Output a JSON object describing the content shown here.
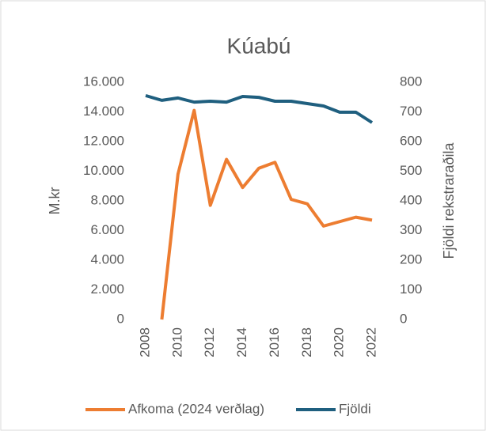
{
  "chart_data": {
    "type": "line",
    "title": "Kúabú",
    "x": [
      2008,
      2009,
      2010,
      2011,
      2012,
      2013,
      2014,
      2015,
      2016,
      2017,
      2018,
      2019,
      2020,
      2021,
      2022
    ],
    "xlim": [
      2008,
      2022
    ],
    "xticks": [
      2008,
      2010,
      2012,
      2014,
      2016,
      2018,
      2020,
      2022
    ],
    "y_label": "M.kr",
    "y2_label": "Fjöldi rekstraraðila",
    "ylim": [
      0,
      16000
    ],
    "yticks": [
      0,
      {
        "value": 2000,
        "label": "2.000"
      },
      {
        "value": 4000,
        "label": "4.000"
      },
      {
        "value": 6000,
        "label": "6.000"
      },
      {
        "value": 8000,
        "label": "8.000"
      },
      {
        "value": 10000,
        "label": "10.000"
      },
      {
        "value": 12000,
        "label": "12.000"
      },
      {
        "value": 14000,
        "label": "14.000"
      },
      {
        "value": 16000,
        "label": "16.000"
      }
    ],
    "y2lim": [
      0,
      800
    ],
    "y2ticks": [
      0,
      100,
      200,
      300,
      400,
      500,
      600,
      700,
      800
    ],
    "legend": "bottom",
    "series": [
      {
        "name": "Afkoma (2024 verðlag)",
        "color": "#ed7d31",
        "values": [
          null,
          0,
          9800,
          14100,
          7700,
          10800,
          8900,
          10200,
          10600,
          8100,
          7800,
          6300,
          6600,
          6900,
          6700
        ]
      },
      {
        "name": "Fjöldi",
        "color": "#1f5f7f",
        "axis": "y2",
        "values": [
          755,
          739,
          747,
          733,
          736,
          733,
          752,
          749,
          736,
          736,
          728,
          720,
          699,
          699,
          664
        ]
      }
    ]
  }
}
